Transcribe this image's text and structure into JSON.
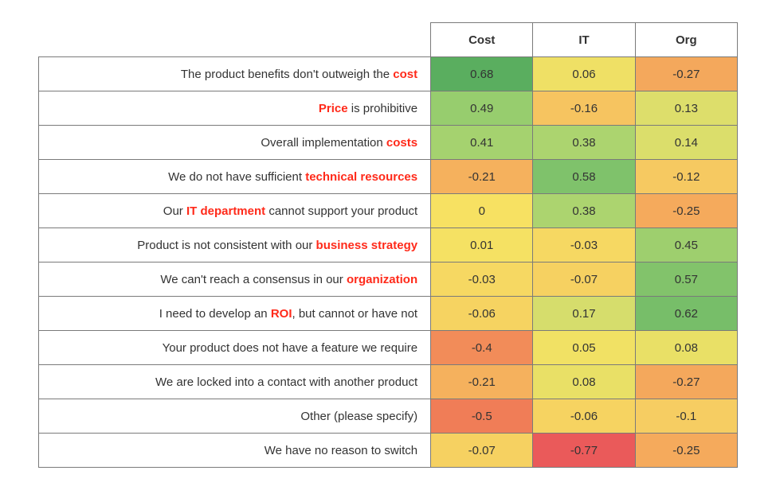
{
  "heatmap": {
    "type": "heatmap-table",
    "columns": [
      "Cost",
      "IT",
      "Org"
    ],
    "background_color": "#ffffff",
    "border_color": "#7a7a7a",
    "text_color": "#333333",
    "highlight_color": "#ff2a1a",
    "header_fontweight": 700,
    "label_fontsize": 15,
    "row_label_align": "right",
    "value_align": "center",
    "column_widths_pct": [
      56,
      14.6,
      14.6,
      14.6
    ],
    "color_scale": {
      "min": -0.77,
      "max": 0.68,
      "stops": [
        {
          "at": -0.77,
          "color": "#ea5a5a"
        },
        {
          "at": -0.5,
          "color": "#f07d57"
        },
        {
          "at": -0.27,
          "color": "#f4a85c"
        },
        {
          "at": -0.1,
          "color": "#f6cd62"
        },
        {
          "at": 0.0,
          "color": "#f7e162"
        },
        {
          "at": 0.1,
          "color": "#e4e069"
        },
        {
          "at": 0.2,
          "color": "#d1de6f"
        },
        {
          "at": 0.4,
          "color": "#a8d36f"
        },
        {
          "at": 0.55,
          "color": "#85c56d"
        },
        {
          "at": 0.68,
          "color": "#5aae5f"
        }
      ]
    },
    "rows": [
      {
        "label_parts": [
          {
            "t": "The product benefits don't outweigh the "
          },
          {
            "t": "cost",
            "hl": true
          }
        ],
        "values": [
          0.68,
          0.06,
          -0.27
        ],
        "cell_colors": [
          "#5aae5f",
          "#efe065",
          "#f4a85c"
        ]
      },
      {
        "label_parts": [
          {
            "t": "Price",
            "hl": true
          },
          {
            "t": " is prohibitive"
          }
        ],
        "values": [
          0.49,
          -0.16,
          0.13
        ],
        "cell_colors": [
          "#97cd6e",
          "#f6c460",
          "#ddde6b"
        ]
      },
      {
        "label_parts": [
          {
            "t": "Overall implementation "
          },
          {
            "t": "costs",
            "hl": true
          }
        ],
        "values": [
          0.41,
          0.38,
          0.14
        ],
        "cell_colors": [
          "#a5d26f",
          "#acd46f",
          "#dbde6b"
        ]
      },
      {
        "label_parts": [
          {
            "t": "We do not have sufficient "
          },
          {
            "t": "technical resources",
            "hl": true
          }
        ],
        "values": [
          -0.21,
          0.58,
          -0.12
        ],
        "cell_colors": [
          "#f5b15d",
          "#7fc26b",
          "#f6c961"
        ]
      },
      {
        "label_parts": [
          {
            "t": "Our "
          },
          {
            "t": "IT department",
            "hl": true
          },
          {
            "t": " cannot support your product"
          }
        ],
        "values": [
          0,
          0.38,
          -0.25
        ],
        "cell_colors": [
          "#f7e162",
          "#acd46f",
          "#f5aa5c"
        ]
      },
      {
        "label_parts": [
          {
            "t": "Product is not consistent with our "
          },
          {
            "t": "business strategy",
            "hl": true
          }
        ],
        "values": [
          0.01,
          -0.03,
          0.45
        ],
        "cell_colors": [
          "#f5e163",
          "#f6d862",
          "#9ecf6e"
        ]
      },
      {
        "label_parts": [
          {
            "t": "We can't reach a consensus in our "
          },
          {
            "t": "organization",
            "hl": true
          }
        ],
        "values": [
          -0.03,
          -0.07,
          0.57
        ],
        "cell_colors": [
          "#f6d862",
          "#f6d161",
          "#82c36b"
        ]
      },
      {
        "label_parts": [
          {
            "t": "I need to develop an "
          },
          {
            "t": "ROI",
            "hl": true
          },
          {
            "t": ", but cannot or have not"
          }
        ],
        "values": [
          -0.06,
          0.17,
          0.62
        ],
        "cell_colors": [
          "#f6d361",
          "#d6dd6c",
          "#77be69"
        ]
      },
      {
        "label_parts": [
          {
            "t": "Your product does not have a feature we require"
          }
        ],
        "values": [
          -0.4,
          0.05,
          0.08
        ],
        "cell_colors": [
          "#f28c59",
          "#f1e164",
          "#e9e066"
        ]
      },
      {
        "label_parts": [
          {
            "t": "We are locked into a contact with another product"
          }
        ],
        "values": [
          -0.21,
          0.08,
          -0.27
        ],
        "cell_colors": [
          "#f5b15d",
          "#e9e066",
          "#f4a85c"
        ]
      },
      {
        "label_parts": [
          {
            "t": "Other (please specify)"
          }
        ],
        "values": [
          -0.5,
          -0.06,
          -0.1
        ],
        "cell_colors": [
          "#f07d57",
          "#f6d361",
          "#f6cd62"
        ]
      },
      {
        "label_parts": [
          {
            "t": "We have no reason to switch"
          }
        ],
        "values": [
          -0.07,
          -0.77,
          -0.25
        ],
        "cell_colors": [
          "#f6d161",
          "#ea5a5a",
          "#f5aa5c"
        ]
      }
    ]
  }
}
